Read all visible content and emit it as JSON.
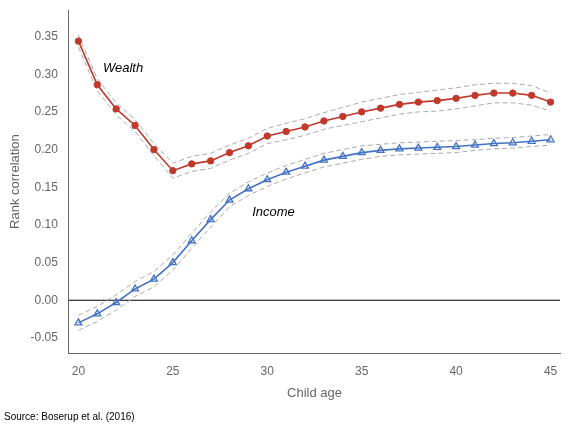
{
  "chart_data": {
    "type": "line",
    "xlabel": "Child age",
    "ylabel": "Rank correlation",
    "source": "Source: Boserup et al. (2016)",
    "x": [
      20,
      21,
      22,
      23,
      24,
      25,
      26,
      27,
      28,
      29,
      30,
      31,
      32,
      33,
      34,
      35,
      36,
      37,
      38,
      39,
      40,
      41,
      42,
      43,
      44,
      45
    ],
    "series": [
      {
        "color": "#aaaaaa",
        "line_style": "dashed",
        "values": [
          0.352,
          0.294,
          0.262,
          0.24,
          0.208,
          0.182,
          0.191,
          0.195,
          0.206,
          0.215,
          0.228,
          0.235,
          0.241,
          0.249,
          0.256,
          0.263,
          0.268,
          0.273,
          0.276,
          0.279,
          0.282,
          0.286,
          0.288,
          0.288,
          0.285,
          0.275
        ]
      },
      {
        "color": "#aaaaaa",
        "line_style": "dashed",
        "values": [
          0.336,
          0.278,
          0.246,
          0.224,
          0.192,
          0.162,
          0.171,
          0.175,
          0.186,
          0.195,
          0.208,
          0.213,
          0.219,
          0.227,
          0.232,
          0.237,
          0.242,
          0.247,
          0.25,
          0.251,
          0.254,
          0.258,
          0.262,
          0.262,
          0.259,
          0.251
        ]
      },
      {
        "color": "#aaaaaa",
        "line_style": "dashed",
        "values": [
          -0.02,
          -0.008,
          0.007,
          0.025,
          0.038,
          0.06,
          0.089,
          0.117,
          0.142,
          0.157,
          0.169,
          0.179,
          0.187,
          0.195,
          0.2,
          0.205,
          0.207,
          0.209,
          0.21,
          0.211,
          0.212,
          0.213,
          0.215,
          0.216,
          0.218,
          0.22
        ]
      },
      {
        "color": "#aaaaaa",
        "line_style": "dashed",
        "values": [
          -0.04,
          -0.028,
          -0.013,
          0.005,
          0.018,
          0.04,
          0.069,
          0.097,
          0.124,
          0.139,
          0.151,
          0.161,
          0.169,
          0.177,
          0.182,
          0.187,
          0.191,
          0.193,
          0.194,
          0.195,
          0.196,
          0.199,
          0.201,
          0.202,
          0.204,
          0.206
        ]
      },
      {
        "color": "#c0392b",
        "line_style": "solid",
        "marker": "circle",
        "values": [
          0.344,
          0.286,
          0.254,
          0.232,
          0.2,
          0.172,
          0.181,
          0.185,
          0.196,
          0.205,
          0.218,
          0.224,
          0.23,
          0.238,
          0.244,
          0.25,
          0.255,
          0.26,
          0.263,
          0.265,
          0.268,
          0.272,
          0.275,
          0.275,
          0.272,
          0.263
        ]
      },
      {
        "color": "#4472c4",
        "line_style": "solid",
        "marker": "triangle-open",
        "values": [
          -0.03,
          -0.018,
          -0.003,
          0.015,
          0.028,
          0.05,
          0.079,
          0.107,
          0.133,
          0.148,
          0.16,
          0.17,
          0.178,
          0.186,
          0.191,
          0.196,
          0.199,
          0.201,
          0.202,
          0.203,
          0.204,
          0.206,
          0.208,
          0.209,
          0.211,
          0.213
        ]
      }
    ],
    "annotations": [
      {
        "text": "Wealth",
        "x": 21.3,
        "y": 0.303
      },
      {
        "text": "Income",
        "x": 29.2,
        "y": 0.112
      }
    ],
    "hlines": [
      {
        "value": 0,
        "color": "#000000"
      }
    ],
    "xlim": [
      19.5,
      45.5
    ],
    "ylim": [
      -0.07,
      0.385
    ],
    "xticks": [
      20,
      25,
      30,
      35,
      40,
      45
    ],
    "yticks": [
      -0.05,
      {
        "value": 0.0,
        "label": "0.00"
      },
      0.05,
      {
        "value": 0.1,
        "label": "0.10"
      },
      0.15,
      {
        "value": 0.2,
        "label": "0.20"
      },
      0.25,
      {
        "value": 0.3,
        "label": "0.30"
      },
      0.35
    ],
    "grid": false
  }
}
